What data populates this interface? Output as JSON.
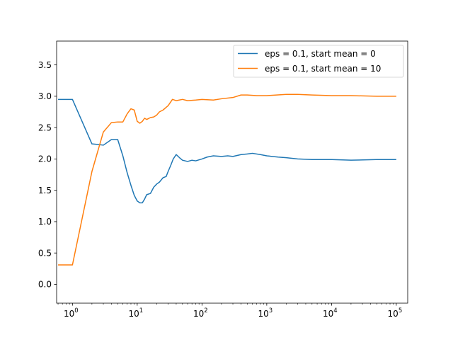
{
  "chart_data": {
    "type": "line",
    "xscale": "log",
    "xlim": [
      0.57,
      150000
    ],
    "ylim": [
      -0.3,
      3.88
    ],
    "grid": false,
    "legend_position": "top-right",
    "xticks": [
      {
        "value": 1,
        "base": "10",
        "exp": "0"
      },
      {
        "value": 10,
        "base": "10",
        "exp": "1"
      },
      {
        "value": 100,
        "base": "10",
        "exp": "2"
      },
      {
        "value": 1000,
        "base": "10",
        "exp": "3"
      },
      {
        "value": 10000,
        "base": "10",
        "exp": "4"
      },
      {
        "value": 100000,
        "base": "10",
        "exp": "5"
      }
    ],
    "yticks": [
      {
        "value": 0.0,
        "label": "0.0"
      },
      {
        "value": 0.5,
        "label": "0.5"
      },
      {
        "value": 1.0,
        "label": "1.0"
      },
      {
        "value": 1.5,
        "label": "1.5"
      },
      {
        "value": 2.0,
        "label": "2.0"
      },
      {
        "value": 2.5,
        "label": "2.5"
      },
      {
        "value": 3.0,
        "label": "3.0"
      },
      {
        "value": 3.5,
        "label": "3.5"
      }
    ],
    "series": [
      {
        "name": "eps = 0.1, start mean = 0",
        "color": "#1f77b4",
        "points": [
          [
            0.6,
            2.95
          ],
          [
            1,
            2.95
          ],
          [
            2,
            2.24
          ],
          [
            2.5,
            2.23
          ],
          [
            3,
            2.22
          ],
          [
            4,
            2.31
          ],
          [
            5,
            2.31
          ],
          [
            6,
            2.05
          ],
          [
            7,
            1.78
          ],
          [
            8,
            1.58
          ],
          [
            9,
            1.42
          ],
          [
            10,
            1.33
          ],
          [
            11,
            1.3
          ],
          [
            12,
            1.3
          ],
          [
            13,
            1.36
          ],
          [
            14,
            1.43
          ],
          [
            16,
            1.45
          ],
          [
            18,
            1.55
          ],
          [
            20,
            1.6
          ],
          [
            22,
            1.63
          ],
          [
            25,
            1.7
          ],
          [
            28,
            1.72
          ],
          [
            30,
            1.8
          ],
          [
            33,
            1.9
          ],
          [
            36,
            2.0
          ],
          [
            40,
            2.07
          ],
          [
            45,
            2.02
          ],
          [
            50,
            1.98
          ],
          [
            60,
            1.96
          ],
          [
            70,
            1.98
          ],
          [
            80,
            1.97
          ],
          [
            100,
            2.0
          ],
          [
            120,
            2.03
          ],
          [
            150,
            2.05
          ],
          [
            200,
            2.04
          ],
          [
            250,
            2.05
          ],
          [
            300,
            2.04
          ],
          [
            400,
            2.07
          ],
          [
            500,
            2.08
          ],
          [
            600,
            2.09
          ],
          [
            800,
            2.07
          ],
          [
            1000,
            2.05
          ],
          [
            1500,
            2.03
          ],
          [
            2000,
            2.02
          ],
          [
            3000,
            2.0
          ],
          [
            5000,
            1.99
          ],
          [
            10000,
            1.99
          ],
          [
            20000,
            1.98
          ],
          [
            50000,
            1.99
          ],
          [
            100000,
            1.99
          ]
        ]
      },
      {
        "name": "eps = 0.1, start mean = 10",
        "color": "#ff7f0e",
        "points": [
          [
            0.6,
            0.31
          ],
          [
            1,
            0.31
          ],
          [
            2,
            1.8
          ],
          [
            3,
            2.43
          ],
          [
            4,
            2.58
          ],
          [
            5,
            2.59
          ],
          [
            6,
            2.59
          ],
          [
            7,
            2.72
          ],
          [
            8,
            2.8
          ],
          [
            9,
            2.78
          ],
          [
            10,
            2.6
          ],
          [
            11,
            2.57
          ],
          [
            12,
            2.6
          ],
          [
            13,
            2.65
          ],
          [
            14,
            2.63
          ],
          [
            16,
            2.66
          ],
          [
            18,
            2.67
          ],
          [
            20,
            2.7
          ],
          [
            22,
            2.75
          ],
          [
            25,
            2.78
          ],
          [
            30,
            2.85
          ],
          [
            35,
            2.95
          ],
          [
            40,
            2.93
          ],
          [
            50,
            2.95
          ],
          [
            60,
            2.93
          ],
          [
            80,
            2.94
          ],
          [
            100,
            2.95
          ],
          [
            150,
            2.94
          ],
          [
            200,
            2.96
          ],
          [
            300,
            2.98
          ],
          [
            400,
            3.02
          ],
          [
            500,
            3.02
          ],
          [
            700,
            3.01
          ],
          [
            1000,
            3.01
          ],
          [
            2000,
            3.03
          ],
          [
            3000,
            3.03
          ],
          [
            5000,
            3.02
          ],
          [
            10000,
            3.01
          ],
          [
            20000,
            3.01
          ],
          [
            50000,
            3.0
          ],
          [
            100000,
            3.0
          ]
        ]
      }
    ]
  }
}
